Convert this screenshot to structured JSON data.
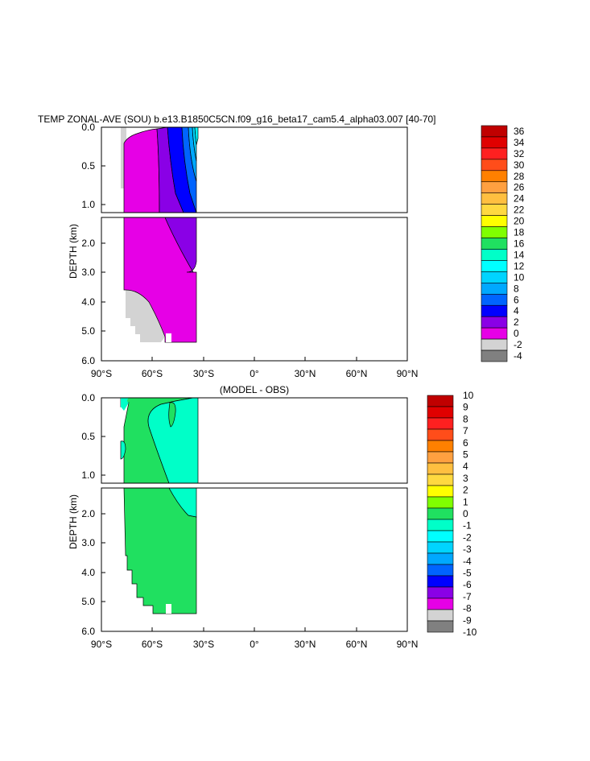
{
  "chart_data": [
    {
      "type": "heatmap",
      "title": "TEMP ZONAL-AVE (SOU) b.e13.B1850C5CN.f09_g16_beta17_cam5.4_alpha03.007 [40-70]",
      "xlabel": "",
      "ylabel": "DEPTH (km)",
      "x_ticks": [
        "90°S",
        "60°S",
        "30°S",
        "0°",
        "30°N",
        "60°N",
        "90°N"
      ],
      "x_range": [
        -90,
        90
      ],
      "y_ticks_upper": [
        "0.0",
        "0.5",
        "1.0"
      ],
      "y_ticks_lower": [
        "2.0",
        "3.0",
        "4.0",
        "5.0",
        "6.0"
      ],
      "y_range_upper_km": [
        0,
        1.15
      ],
      "y_range_lower_km": [
        1.15,
        6.0
      ],
      "data_lat_range": [
        -78,
        -34
      ],
      "colorbar": {
        "labels": [
          "36",
          "34",
          "32",
          "30",
          "28",
          "26",
          "24",
          "22",
          "20",
          "18",
          "16",
          "14",
          "12",
          "10",
          "8",
          "6",
          "4",
          "2",
          "0",
          "-2",
          "-4"
        ],
        "colors": [
          "#c00000",
          "#e00000",
          "#ff2020",
          "#ff4d1a",
          "#ff8000",
          "#ffa040",
          "#ffbf40",
          "#ffd940",
          "#ffff00",
          "#80ff00",
          "#20e060",
          "#00ffc8",
          "#00ffff",
          "#00d4ff",
          "#00a8ff",
          "#0064ff",
          "#0000ff",
          "#8a00e6",
          "#e600e6",
          "#d3d3d3",
          "#808080"
        ]
      },
      "regions": [
        {
          "label": "-2 to 0",
          "color": "#d3d3d3"
        },
        {
          "label": "0 to 2",
          "color": "#e600e6"
        },
        {
          "label": "2 to 4",
          "color": "#8a00e6"
        },
        {
          "label": "4 to 6",
          "color": "#0000ff"
        },
        {
          "label": "6 to 8",
          "color": "#0064ff"
        },
        {
          "label": "8 to 10",
          "color": "#00a8ff"
        },
        {
          "label": "10 to 12",
          "color": "#00d4ff"
        },
        {
          "label": "12 to 14",
          "color": "#00ffff"
        }
      ]
    },
    {
      "type": "heatmap",
      "title": "(MODEL - OBS)",
      "xlabel": "",
      "ylabel": "DEPTH (km)",
      "x_ticks": [
        "90°S",
        "60°S",
        "30°S",
        "0°",
        "30°N",
        "60°N",
        "90°N"
      ],
      "x_range": [
        -90,
        90
      ],
      "y_ticks_upper": [
        "0.0",
        "0.5",
        "1.0"
      ],
      "y_ticks_lower": [
        "2.0",
        "3.0",
        "4.0",
        "5.0",
        "6.0"
      ],
      "y_range_upper_km": [
        0,
        1.15
      ],
      "y_range_lower_km": [
        1.15,
        6.0
      ],
      "data_lat_range": [
        -78,
        -34
      ],
      "colorbar": {
        "labels": [
          "10",
          "9",
          "8",
          "7",
          "6",
          "5",
          "4",
          "3",
          "2",
          "1",
          "0",
          "-1",
          "-2",
          "-3",
          "-4",
          "-5",
          "-6",
          "-7",
          "-8",
          "-9",
          "-10"
        ],
        "colors": [
          "#c00000",
          "#e00000",
          "#ff2020",
          "#ff4d1a",
          "#ff8000",
          "#ffa040",
          "#ffbf40",
          "#ffd940",
          "#ffff00",
          "#80ff00",
          "#20e060",
          "#00ffc8",
          "#00ffff",
          "#00d4ff",
          "#00a8ff",
          "#0064ff",
          "#0000ff",
          "#8a00e6",
          "#e600e6",
          "#d3d3d3",
          "#808080"
        ]
      },
      "regions": [
        {
          "label": "0 to 1",
          "color": "#20e060"
        },
        {
          "label": "-1 to 0",
          "color": "#00ffc8"
        }
      ]
    }
  ]
}
